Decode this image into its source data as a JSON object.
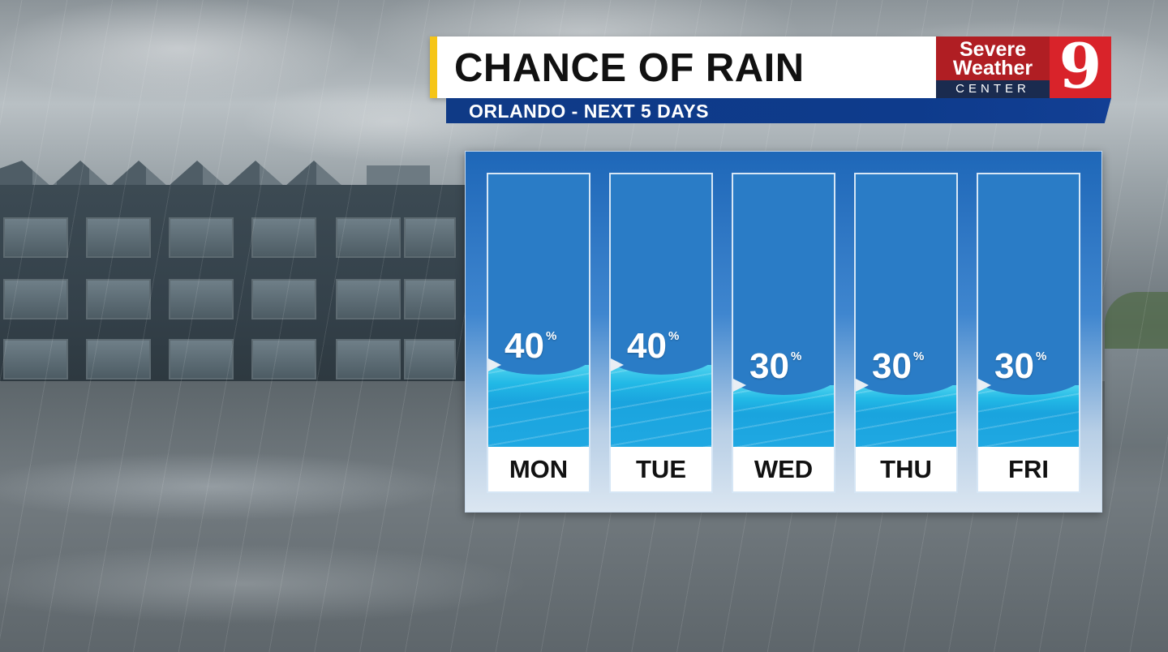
{
  "header": {
    "title": "CHANCE OF RAIN",
    "subtitle": "ORLANDO - NEXT 5 DAYS"
  },
  "logo": {
    "line1": "Severe",
    "line2": "Weather",
    "line3": "CENTER",
    "channel": "9",
    "colors": {
      "red": "#b01e23",
      "bright_red": "#d9232a",
      "navy": "#1a2b4f"
    }
  },
  "chart_data": {
    "type": "bar",
    "categories": [
      "MON",
      "TUE",
      "WED",
      "THU",
      "FRI"
    ],
    "values": [
      40,
      40,
      30,
      30,
      30
    ],
    "unit": "%",
    "ylim": [
      0,
      100
    ],
    "title": "CHANCE OF RAIN",
    "subtitle": "ORLANDO - NEXT 5 DAYS"
  },
  "colors": {
    "title_accent": "#f5c518",
    "subtitle_bar": "#0f3a86",
    "panel_blue": "#1e67b8",
    "water": "#1fa8e2"
  }
}
